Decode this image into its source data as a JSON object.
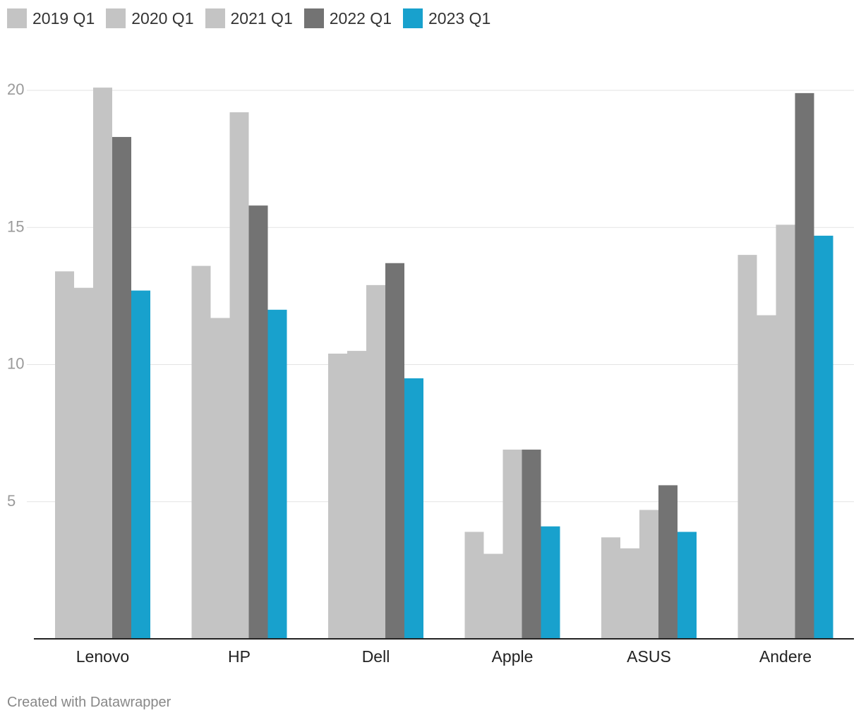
{
  "chart_data": {
    "type": "bar",
    "title": "",
    "xlabel": "",
    "ylabel": "",
    "categories": [
      "Lenovo",
      "HP",
      "Dell",
      "Apple",
      "ASUS",
      "Andere"
    ],
    "series": [
      {
        "name": "2019 Q1",
        "color": "#c4c4c4",
        "values": [
          13.4,
          13.6,
          10.4,
          3.9,
          3.7,
          14.0
        ]
      },
      {
        "name": "2020 Q1",
        "color": "#c4c4c4",
        "values": [
          12.8,
          11.7,
          10.5,
          3.1,
          3.3,
          11.8
        ]
      },
      {
        "name": "2021 Q1",
        "color": "#c4c4c4",
        "values": [
          20.1,
          19.2,
          12.9,
          6.9,
          4.7,
          15.1
        ]
      },
      {
        "name": "2022 Q1",
        "color": "#737373",
        "values": [
          18.3,
          15.8,
          13.7,
          6.9,
          5.6,
          19.9
        ]
      },
      {
        "name": "2023 Q1",
        "color": "#18a1cd",
        "values": [
          12.7,
          12.0,
          9.5,
          4.1,
          3.9,
          14.7
        ]
      }
    ],
    "ylim": [
      0,
      20
    ],
    "yticks": [
      5,
      10,
      15,
      20
    ],
    "grid": true,
    "legend": "top-left"
  },
  "footer": {
    "credit": "Created with Datawrapper"
  }
}
